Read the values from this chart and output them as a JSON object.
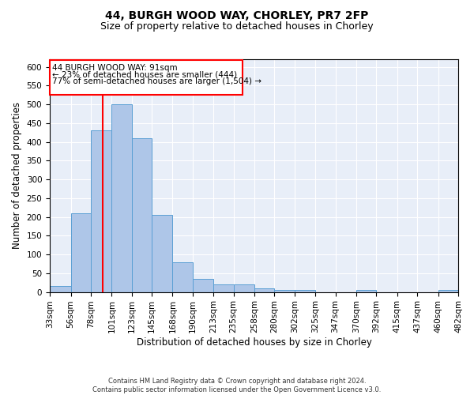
{
  "title_line1": "44, BURGH WOOD WAY, CHORLEY, PR7 2FP",
  "title_line2": "Size of property relative to detached houses in Chorley",
  "xlabel": "Distribution of detached houses by size in Chorley",
  "ylabel": "Number of detached properties",
  "footnote": "Contains HM Land Registry data © Crown copyright and database right 2024.\nContains public sector information licensed under the Open Government Licence v3.0.",
  "annotation_line1": "44 BURGH WOOD WAY: 91sqm",
  "annotation_line2": "← 23% of detached houses are smaller (444)",
  "annotation_line3": "77% of semi-detached houses are larger (1,504) →",
  "bar_color": "#aec6e8",
  "bar_edge_color": "#5a9fd4",
  "red_line_x": 91,
  "bin_edges": [
    33,
    56,
    78,
    101,
    123,
    145,
    168,
    190,
    213,
    235,
    258,
    280,
    302,
    325,
    347,
    370,
    392,
    415,
    437,
    460,
    482
  ],
  "bar_heights": [
    15,
    210,
    430,
    500,
    410,
    205,
    80,
    35,
    20,
    20,
    10,
    5,
    5,
    0,
    0,
    5,
    0,
    0,
    0,
    5
  ],
  "ylim": [
    0,
    620
  ],
  "yticks": [
    0,
    50,
    100,
    150,
    200,
    250,
    300,
    350,
    400,
    450,
    500,
    550,
    600
  ],
  "background_color": "#e8eef8",
  "grid_color": "#ffffff",
  "title_fontsize": 10,
  "subtitle_fontsize": 9,
  "axis_label_fontsize": 8.5,
  "tick_fontsize": 7.5,
  "footnote_fontsize": 6.0
}
